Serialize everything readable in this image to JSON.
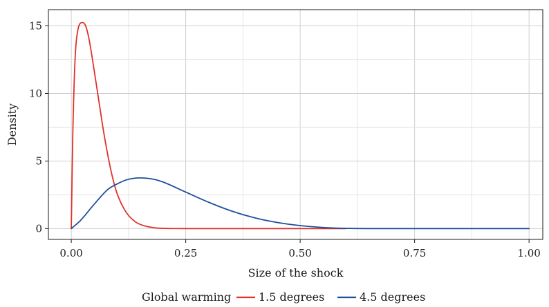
{
  "chart_data": {
    "type": "line",
    "xlabel": "Size of the shock",
    "ylabel": "Density",
    "xlim": [
      -0.05,
      1.03
    ],
    "ylim": [
      -0.8,
      16.2
    ],
    "x_ticks": [
      0,
      0.25,
      0.5,
      0.75,
      1
    ],
    "x_tick_labels": [
      "0.00",
      "0.25",
      "0.50",
      "0.75",
      "1.00"
    ],
    "y_ticks": [
      0,
      5,
      10,
      15
    ],
    "y_tick_labels": [
      "0",
      "5",
      "10",
      "15"
    ],
    "grid": true,
    "legend": {
      "title": "Global warming",
      "position": "bottom"
    },
    "series": [
      {
        "name": "1.5 degrees",
        "color": "#e0312b",
        "x": [
          0,
          0.003,
          0.007,
          0.01,
          0.015,
          0.02,
          0.025,
          0.03,
          0.035,
          0.04,
          0.05,
          0.06,
          0.07,
          0.08,
          0.09,
          0.1,
          0.12,
          0.14,
          0.16,
          0.18,
          0.2,
          0.25,
          0.3,
          0.4,
          0.5,
          0.6
        ],
        "y": [
          0,
          6.5,
          11.5,
          13.5,
          14.8,
          15.2,
          15.25,
          15.1,
          14.6,
          13.8,
          11.7,
          9.5,
          7.3,
          5.4,
          3.8,
          2.6,
          1.2,
          0.5,
          0.2,
          0.07,
          0.02,
          0,
          0,
          0,
          0,
          0
        ]
      },
      {
        "name": "4.5 degrees",
        "color": "#1f4e9c",
        "x": [
          0,
          0.02,
          0.05,
          0.08,
          0.1,
          0.12,
          0.15,
          0.18,
          0.2,
          0.25,
          0.3,
          0.35,
          0.4,
          0.45,
          0.5,
          0.55,
          0.6,
          0.7,
          0.8,
          0.9,
          1.0
        ],
        "y": [
          0,
          0.6,
          1.8,
          2.9,
          3.3,
          3.6,
          3.75,
          3.65,
          3.45,
          2.7,
          1.95,
          1.3,
          0.8,
          0.45,
          0.22,
          0.08,
          0.02,
          0,
          0,
          0,
          0
        ]
      }
    ]
  }
}
